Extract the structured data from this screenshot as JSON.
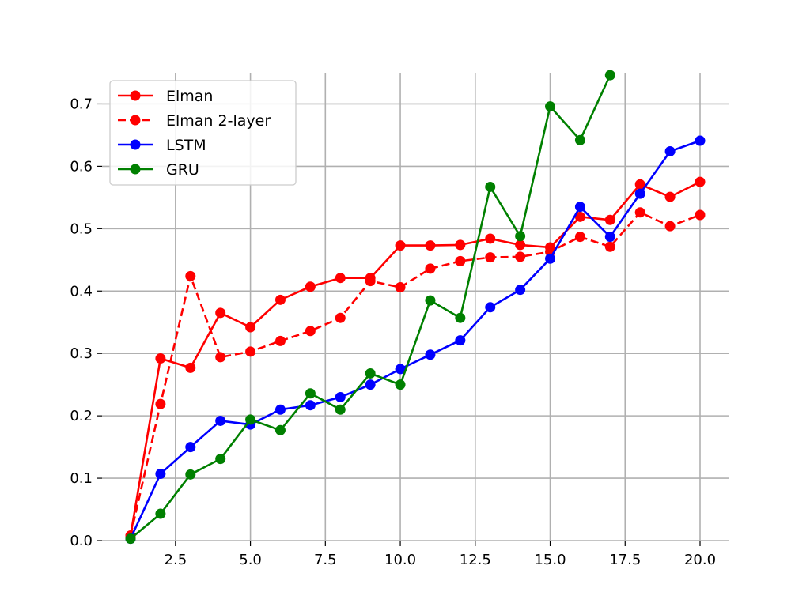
{
  "chart_data": {
    "type": "line",
    "title": "",
    "xlabel": "",
    "ylabel": "",
    "xlim": [
      0.05,
      20.95
    ],
    "ylim": [
      0.0,
      0.75
    ],
    "grid": true,
    "legend_position": "top-left",
    "x_ticks": [
      2.5,
      5.0,
      7.5,
      10.0,
      12.5,
      15.0,
      17.5,
      20.0
    ],
    "x_tick_labels": [
      "2.5",
      "5.0",
      "7.5",
      "10.0",
      "12.5",
      "15.0",
      "17.5",
      "20.0"
    ],
    "y_ticks": [
      0.0,
      0.1,
      0.2,
      0.3,
      0.4,
      0.5,
      0.6,
      0.7
    ],
    "y_tick_labels": [
      "0.0",
      "0.1",
      "0.2",
      "0.3",
      "0.4",
      "0.5",
      "0.6",
      "0.7"
    ],
    "series": [
      {
        "name": "Elman",
        "color": "#ff0000",
        "dash": "solid",
        "x": [
          1,
          2,
          3,
          4,
          5,
          6,
          7,
          8,
          9,
          10,
          11,
          12,
          13,
          14,
          15,
          16,
          17,
          18,
          19,
          20
        ],
        "values": [
          0.008,
          0.292,
          0.277,
          0.365,
          0.342,
          0.386,
          0.407,
          0.421,
          0.421,
          0.473,
          0.473,
          0.474,
          0.484,
          0.474,
          0.47,
          0.519,
          0.514,
          0.571,
          0.551,
          0.575
        ]
      },
      {
        "name": "Elman 2-layer",
        "color": "#ff0000",
        "dash": "dashed",
        "x": [
          1,
          2,
          3,
          4,
          5,
          6,
          7,
          8,
          9,
          10,
          11,
          12,
          13,
          14,
          15,
          16,
          17,
          18,
          19,
          20
        ],
        "values": [
          0.008,
          0.219,
          0.424,
          0.294,
          0.303,
          0.32,
          0.336,
          0.357,
          0.416,
          0.406,
          0.436,
          0.448,
          0.454,
          0.455,
          0.463,
          0.487,
          0.471,
          0.526,
          0.504,
          0.522
        ]
      },
      {
        "name": "LSTM",
        "color": "#0000ff",
        "dash": "solid",
        "x": [
          1,
          2,
          3,
          4,
          5,
          6,
          7,
          8,
          9,
          10,
          11,
          12,
          13,
          14,
          15,
          16,
          17,
          18,
          19,
          20
        ],
        "values": [
          0.003,
          0.107,
          0.15,
          0.192,
          0.186,
          0.21,
          0.217,
          0.23,
          0.25,
          0.275,
          0.298,
          0.321,
          0.374,
          0.402,
          0.452,
          0.535,
          0.487,
          0.556,
          0.624,
          0.641
        ]
      },
      {
        "name": "GRU",
        "color": "#008000",
        "dash": "solid",
        "x": [
          1,
          2,
          3,
          4,
          5,
          6,
          7,
          8,
          9,
          10,
          11,
          12,
          13,
          14,
          15,
          16,
          17
        ],
        "values": [
          0.003,
          0.043,
          0.106,
          0.131,
          0.194,
          0.177,
          0.236,
          0.21,
          0.268,
          0.25,
          0.385,
          0.357,
          0.567,
          0.488,
          0.696,
          0.642,
          0.746
        ]
      }
    ]
  }
}
